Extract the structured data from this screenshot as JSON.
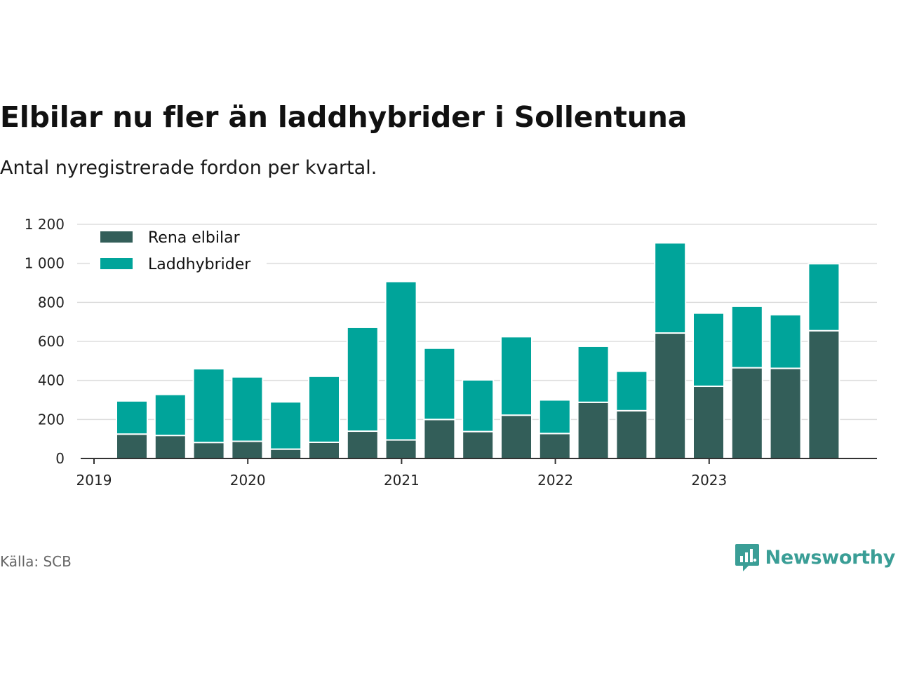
{
  "title": "Elbilar nu fler än laddhybrider i Sollentuna",
  "subtitle": "Antal nyregistrerade fordon per kvartal.",
  "source": "Källa: SCB",
  "brand": "Newsworthy",
  "colors": {
    "rena_elbilar": "#335e59",
    "laddhybrider": "#00a49a",
    "grid": "#dddddd",
    "axis": "#333333",
    "brand": "#3a9e96"
  },
  "chart_data": {
    "type": "bar",
    "stacked": true,
    "title": "Elbilar nu fler än laddhybrider i Sollentuna",
    "subtitle": "Antal nyregistrerade fordon per kvartal.",
    "xlabel": "",
    "ylabel": "",
    "ylim": [
      0,
      1200
    ],
    "yticks": [
      0,
      200,
      400,
      600,
      800,
      1000,
      1200
    ],
    "ytick_labels": [
      "0",
      "200",
      "400",
      "600",
      "800",
      "1 000",
      "1 200"
    ],
    "xticks": [
      "2019",
      "2020",
      "2021",
      "2022",
      "2023"
    ],
    "legend_position": "top-left",
    "grid": true,
    "categories": [
      "2019 Q2",
      "2019 Q3",
      "2019 Q4",
      "2020 Q1",
      "2020 Q2",
      "2020 Q3",
      "2020 Q4",
      "2021 Q1",
      "2021 Q2",
      "2021 Q3",
      "2021 Q4",
      "2022 Q1",
      "2022 Q2",
      "2022 Q3",
      "2022 Q4",
      "2023 Q1",
      "2023 Q2",
      "2023 Q3",
      "2023 Q4"
    ],
    "series": [
      {
        "name": "Rena elbilar",
        "values": [
          125,
          118,
          82,
          88,
          48,
          83,
          140,
          95,
          200,
          138,
          222,
          128,
          288,
          245,
          643,
          370,
          465,
          462,
          655
        ]
      },
      {
        "name": "Laddhybrider",
        "values": [
          170,
          210,
          378,
          330,
          242,
          338,
          532,
          812,
          365,
          265,
          402,
          172,
          287,
          202,
          462,
          375,
          315,
          275,
          343
        ]
      }
    ]
  }
}
